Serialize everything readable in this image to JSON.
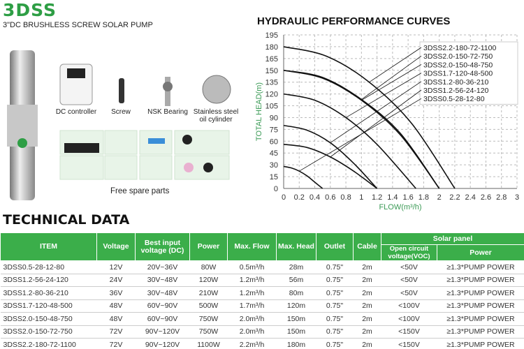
{
  "header": {
    "brand": "3DSS",
    "subtitle": "3\"DC BRUSHLESS SCREW SOLAR PUMP"
  },
  "components": [
    "DC controller",
    "Screw",
    "NSK Bearing",
    "Stainless steel oil cylinder"
  ],
  "spare_parts_label": "Free spare parts",
  "chart_data": {
    "type": "line",
    "title": "HYDRAULIC PERFORMANCE CURVES",
    "x_label": "FLOW(m³/h)",
    "y_label": "TOTAL HEAD(m)",
    "xlim": [
      0,
      3
    ],
    "xticks": [
      0,
      0.2,
      0.4,
      0.6,
      0.8,
      1,
      1.2,
      1.4,
      1.6,
      1.8,
      2,
      2.2,
      2.4,
      2.6,
      2.8,
      3
    ],
    "ylim": [
      0,
      195
    ],
    "yticks": [
      0,
      15,
      30,
      45,
      60,
      75,
      90,
      105,
      120,
      135,
      150,
      165,
      180,
      195
    ],
    "grid": true,
    "series": [
      {
        "name": "3DSS2.2-180-72-1100",
        "color": "#111111",
        "x": [
          0,
          0.55,
          1.1,
          1.65,
          2.2
        ],
        "values": [
          180,
          168,
          135,
          82,
          0
        ]
      },
      {
        "name": "3DSS2.0-150-72-750",
        "color": "#111111",
        "x": [
          0,
          0.5,
          1,
          1.5,
          2
        ],
        "values": [
          150,
          141,
          113,
          70,
          0
        ]
      },
      {
        "name": "3DSS2.0-150-48-750",
        "color": "#111111",
        "x": [
          0,
          0.5,
          1,
          1.5,
          2
        ],
        "values": [
          150,
          140,
          112,
          68,
          0
        ]
      },
      {
        "name": "3DSS1.7-120-48-500",
        "color": "#111111",
        "x": [
          0,
          0.4,
          0.8,
          1.2,
          1.7
        ],
        "values": [
          120,
          112,
          90,
          56,
          0
        ]
      },
      {
        "name": "3DSS1.2-80-36-210",
        "color": "#111111",
        "x": [
          0,
          0.3,
          0.6,
          0.9,
          1.2
        ],
        "values": [
          80,
          74,
          58,
          32,
          0
        ]
      },
      {
        "name": "3DSS1.2-56-24-120",
        "color": "#111111",
        "x": [
          0,
          0.3,
          0.6,
          0.9,
          1.2
        ],
        "values": [
          56,
          52,
          40,
          22,
          0
        ]
      },
      {
        "name": "3DSS0.5-28-12-80",
        "color": "#111111",
        "x": [
          0,
          0.1,
          0.2,
          0.3,
          0.4,
          0.5
        ],
        "values": [
          28,
          26,
          22,
          16,
          8,
          0
        ]
      }
    ]
  },
  "table": {
    "title": "TECHNICAL DATA",
    "header": [
      "ITEM",
      "Voltage",
      "Best input voltage (DC)",
      "Power",
      "Max. Flow",
      "Max. Head",
      "Outlet",
      "Cable",
      "Solar panel"
    ],
    "subheader": [
      "Open circuit voltage(VOC)",
      "Power"
    ],
    "rows": [
      [
        "3DSS0.5-28-12-80",
        "12V",
        "20V~36V",
        "80W",
        "0.5m³/h",
        "28m",
        "0.75\"",
        "2m",
        "<50V",
        "≥1.3*PUMP POWER"
      ],
      [
        "3DSS1.2-56-24-120",
        "24V",
        "30V~48V",
        "120W",
        "1.2m³/h",
        "56m",
        "0.75\"",
        "2m",
        "<50V",
        "≥1.3*PUMP POWER"
      ],
      [
        "3DSS1.2-80-36-210",
        "36V",
        "30V~48V",
        "210W",
        "1.2m³/h",
        "80m",
        "0.75\"",
        "2m",
        "<50V",
        "≥1.3*PUMP POWER"
      ],
      [
        "3DSS1.7-120-48-500",
        "48V",
        "60V~90V",
        "500W",
        "1.7m³/h",
        "120m",
        "0.75\"",
        "2m",
        "<100V",
        "≥1.3*PUMP POWER"
      ],
      [
        "3DSS2.0-150-48-750",
        "48V",
        "60V~90V",
        "750W",
        "2.0m³/h",
        "150m",
        "0.75\"",
        "2m",
        "<100V",
        "≥1.3*PUMP POWER"
      ],
      [
        "3DSS2.0-150-72-750",
        "72V",
        "90V~120V",
        "750W",
        "2.0m³/h",
        "150m",
        "0.75\"",
        "2m",
        "<150V",
        "≥1.3*PUMP POWER"
      ],
      [
        "3DSS2.2-180-72-1100",
        "72V",
        "90V~120V",
        "1100W",
        "2.2m³/h",
        "180m",
        "0.75\"",
        "2m",
        "<150V",
        "≥1.3*PUMP POWER"
      ]
    ]
  }
}
